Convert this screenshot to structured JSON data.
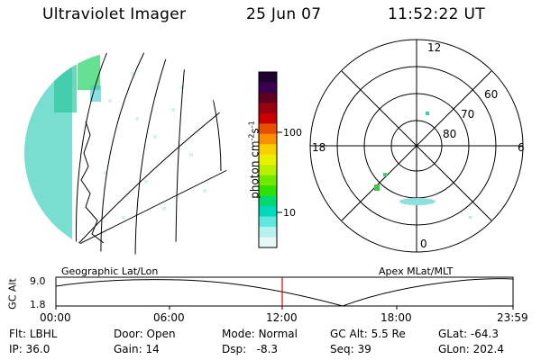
{
  "header": {
    "title": "Ultraviolet Imager",
    "date": "25 Jun 07",
    "time": "11:52:22 UT"
  },
  "left_panel": {
    "caption": "Geographic Lat/Lon"
  },
  "colorbar": {
    "label": "photon cm",
    "label_exp1": "-2",
    "label_mid": "s",
    "label_exp2": "-1",
    "ticks": [
      {
        "label": "100",
        "value": 100
      },
      {
        "label": "10",
        "value": 10
      }
    ],
    "colors": [
      "#200030",
      "#3a0050",
      "#600020",
      "#9a0010",
      "#c80000",
      "#e85000",
      "#f89000",
      "#f8d000",
      "#e8f000",
      "#b8f000",
      "#70e800",
      "#30e000",
      "#00d870",
      "#00d8c0",
      "#60e8e0",
      "#b8f0f0",
      "#e8f8f8"
    ]
  },
  "right_panel": {
    "caption": "Apex  MLat/MLT",
    "mlt_labels": {
      "top": "12",
      "bottom": "0",
      "left": "18",
      "right": "6"
    },
    "mlat_labels": [
      "60",
      "70",
      "80"
    ]
  },
  "timeline": {
    "ylabel": "GC Alt",
    "y_ticks": [
      "9.0",
      "1.8"
    ],
    "x_ticks": [
      "00:00",
      "06:00",
      "12:00",
      "18:00",
      "23:59"
    ],
    "current_time_marker": "12:00"
  },
  "status": {
    "flt_label": "Flt:",
    "flt_value": "LBHL",
    "ip_label": "IP:",
    "ip_value": "36.0",
    "door_label": "Door:",
    "door_value": "Open",
    "gain_label": "Gain:",
    "gain_value": "14",
    "mode_label": "Mode:",
    "mode_value": "Normal",
    "dsp_label": "Dsp:",
    "dsp_value": "-8.3",
    "gcalt_label": "GC Alt:",
    "gcalt_value": "5.5 Re",
    "seq_label": "Seq:",
    "seq_value": "39",
    "glat_label": "GLat:",
    "glat_value": "-64.3",
    "glon_label": "GLon:",
    "glon_value": "202.4"
  }
}
